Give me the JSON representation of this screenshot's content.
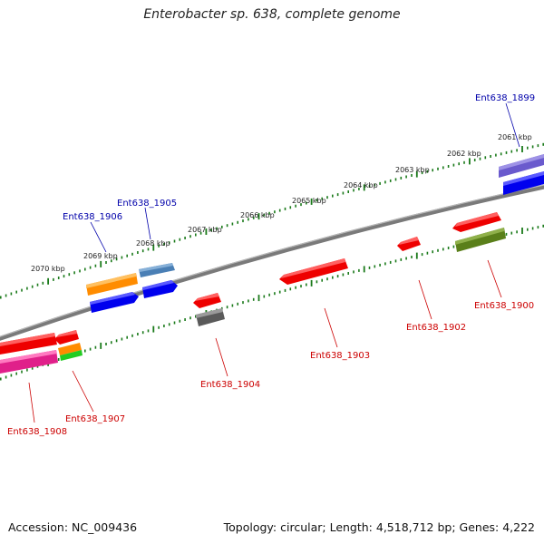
{
  "title": "Enterobacter sp. 638, complete genome",
  "footer": {
    "accession": "Accession: NC_009436",
    "summary": "Topology: circular; Length: 4,518,712 bp; Genes: 4,222"
  },
  "colors": {
    "backbone": "#808080",
    "ticks": "#1a7a1a",
    "label_forward": "#0000aa",
    "label_reverse": "#cc0000"
  },
  "scale_labels": [
    "2061 kbp",
    "2062 kbp",
    "2063 kbp",
    "2064 kbp",
    "2065 kbp",
    "2066 kbp",
    "2067 kbp",
    "2068 kbp",
    "2069 kbp",
    "2070 kbp"
  ],
  "gene_labels": [
    {
      "name": "Ent638_1899",
      "strand": "forward"
    },
    {
      "name": "Ent638_1905",
      "strand": "forward"
    },
    {
      "name": "Ent638_1906",
      "strand": "forward"
    },
    {
      "name": "Ent638_1900",
      "strand": "reverse"
    },
    {
      "name": "Ent638_1902",
      "strand": "reverse"
    },
    {
      "name": "Ent638_1903",
      "strand": "reverse"
    },
    {
      "name": "Ent638_1904",
      "strand": "reverse"
    },
    {
      "name": "Ent638_1907",
      "strand": "reverse"
    },
    {
      "name": "Ent638_1908",
      "strand": "reverse"
    }
  ]
}
